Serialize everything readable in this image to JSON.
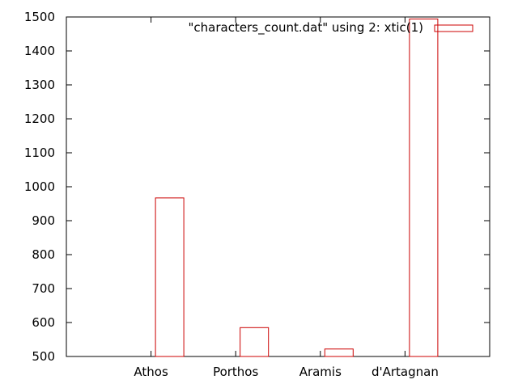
{
  "chart_data": {
    "type": "bar",
    "categories": [
      "Athos",
      "Porthos",
      "Aramis",
      "d'Artagnan"
    ],
    "series": [
      {
        "name": "\"characters_count.dat\" using 2: xtic(1)",
        "values": [
          967,
          585,
          522,
          1494
        ]
      }
    ],
    "ylim": [
      500,
      1500
    ],
    "yticks": [
      500,
      600,
      700,
      800,
      900,
      1000,
      1100,
      1200,
      1300,
      1400,
      1500
    ],
    "grid": false,
    "legend_position": "top-right",
    "colors": {
      "bar_stroke": "#cc0000",
      "axis": "#000000",
      "background": "#ffffff"
    }
  }
}
